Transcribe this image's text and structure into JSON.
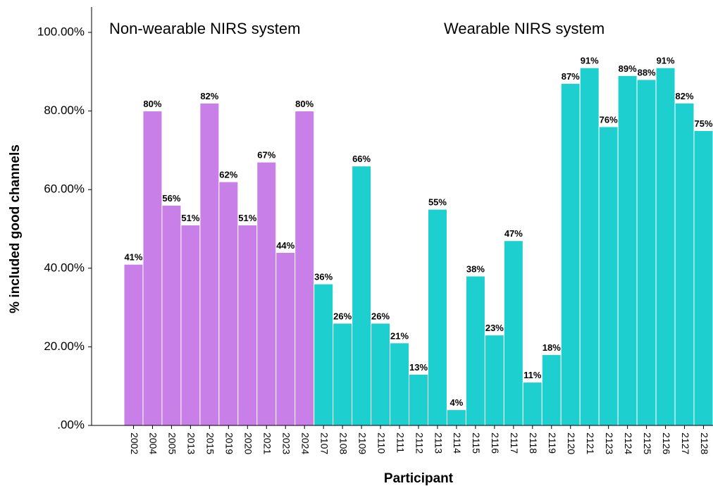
{
  "chart_data": {
    "type": "bar",
    "x_label": "Participant",
    "y_label": "% included good channels",
    "categories": [
      "2002",
      "2004",
      "2005",
      "2013",
      "2015",
      "2019",
      "2020",
      "2021",
      "2023",
      "2024",
      "2107",
      "2108",
      "2109",
      "2110",
      "2111",
      "2112",
      "2113",
      "2114",
      "2115",
      "2116",
      "2117",
      "2118",
      "2119",
      "2120",
      "2121",
      "2123",
      "2124",
      "2125",
      "2126",
      "2127",
      "2128"
    ],
    "series": [
      {
        "name": "Non-wearable NIRS system",
        "color": "#c97fe8",
        "values": [
          41,
          80,
          56,
          51,
          82,
          62,
          51,
          67,
          44,
          80,
          null,
          null,
          null,
          null,
          null,
          null,
          null,
          null,
          null,
          null,
          null,
          null,
          null,
          null,
          null,
          null,
          null,
          null,
          null,
          null,
          null
        ],
        "value_labels": [
          "41%",
          "80%",
          "56%",
          "51%",
          "82%",
          "62%",
          "51%",
          "67%",
          "44%",
          "80%",
          null,
          null,
          null,
          null,
          null,
          null,
          null,
          null,
          null,
          null,
          null,
          null,
          null,
          null,
          null,
          null,
          null,
          null,
          null,
          null,
          null
        ]
      },
      {
        "name": "Wearable NIRS system",
        "color": "#1ecfcf",
        "values": [
          null,
          null,
          null,
          null,
          null,
          null,
          null,
          null,
          null,
          null,
          36,
          26,
          66,
          26,
          21,
          13,
          55,
          4,
          38,
          23,
          47,
          11,
          18,
          87,
          91,
          76,
          89,
          88,
          91,
          82,
          75
        ],
        "value_labels": [
          null,
          null,
          null,
          null,
          null,
          null,
          null,
          null,
          null,
          null,
          "36%",
          "26%",
          "66%",
          "26%",
          "21%",
          "13%",
          "55%",
          "4%",
          "38%",
          "23%",
          "47%",
          "11%",
          "18%",
          "87%",
          "91%",
          "76%",
          "89%",
          "88%",
          "91%",
          "82%",
          "75%"
        ]
      }
    ],
    "ylim": [
      0,
      100
    ],
    "yticks": [
      {
        "value": 0,
        "label": ".00%"
      },
      {
        "value": 20,
        "label": "20.00%"
      },
      {
        "value": 40,
        "label": "40.00%"
      },
      {
        "value": 60,
        "label": "60.00%"
      },
      {
        "value": 80,
        "label": "80.00%"
      },
      {
        "value": 100,
        "label": "100.00%"
      }
    ]
  }
}
